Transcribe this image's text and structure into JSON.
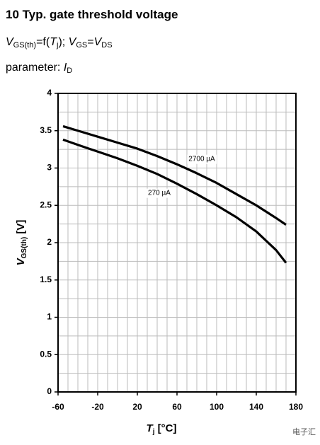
{
  "chart_data": {
    "type": "line",
    "title": "10 Typ. gate threshold voltage",
    "subtitle": [
      "V",
      "GS(th)",
      "=f(",
      "T",
      "j",
      "); ",
      "V",
      "GS",
      "=",
      "V",
      "DS"
    ],
    "parameter": [
      "parameter: ",
      "I",
      "D"
    ],
    "xlabel": [
      "T",
      "j",
      " [°C]"
    ],
    "ylabel": [
      "V",
      "GS(th)",
      " [V]"
    ],
    "xlim": [
      -60,
      180
    ],
    "ylim": [
      0,
      4
    ],
    "xticks": [
      -60,
      -20,
      20,
      60,
      100,
      140,
      180
    ],
    "yticks": [
      0,
      0.5,
      1,
      1.5,
      2,
      2.5,
      3,
      3.5,
      4
    ],
    "xgrid": [
      -60,
      -50,
      -40,
      -30,
      -20,
      -10,
      0,
      10,
      20,
      30,
      40,
      50,
      60,
      70,
      80,
      90,
      100,
      110,
      120,
      130,
      140,
      150,
      160,
      170,
      180
    ],
    "ygrid": [
      0,
      0.25,
      0.5,
      0.75,
      1,
      1.25,
      1.5,
      1.75,
      2,
      2.25,
      2.5,
      2.75,
      3,
      3.25,
      3.5,
      3.75,
      4
    ],
    "grid": true,
    "x": [
      -55,
      -40,
      -20,
      0,
      20,
      40,
      60,
      80,
      100,
      120,
      140,
      160,
      170
    ],
    "series": [
      {
        "name": "2700 µA",
        "color": "#000000",
        "values": [
          3.56,
          3.5,
          3.42,
          3.34,
          3.26,
          3.16,
          3.05,
          2.93,
          2.8,
          2.65,
          2.5,
          2.33,
          2.24
        ]
      },
      {
        "name": "270 µA",
        "color": "#000000",
        "values": [
          3.38,
          3.31,
          3.22,
          3.13,
          3.03,
          2.92,
          2.79,
          2.65,
          2.5,
          2.34,
          2.15,
          1.9,
          1.73
        ]
      }
    ],
    "watermark": "电子汇"
  }
}
